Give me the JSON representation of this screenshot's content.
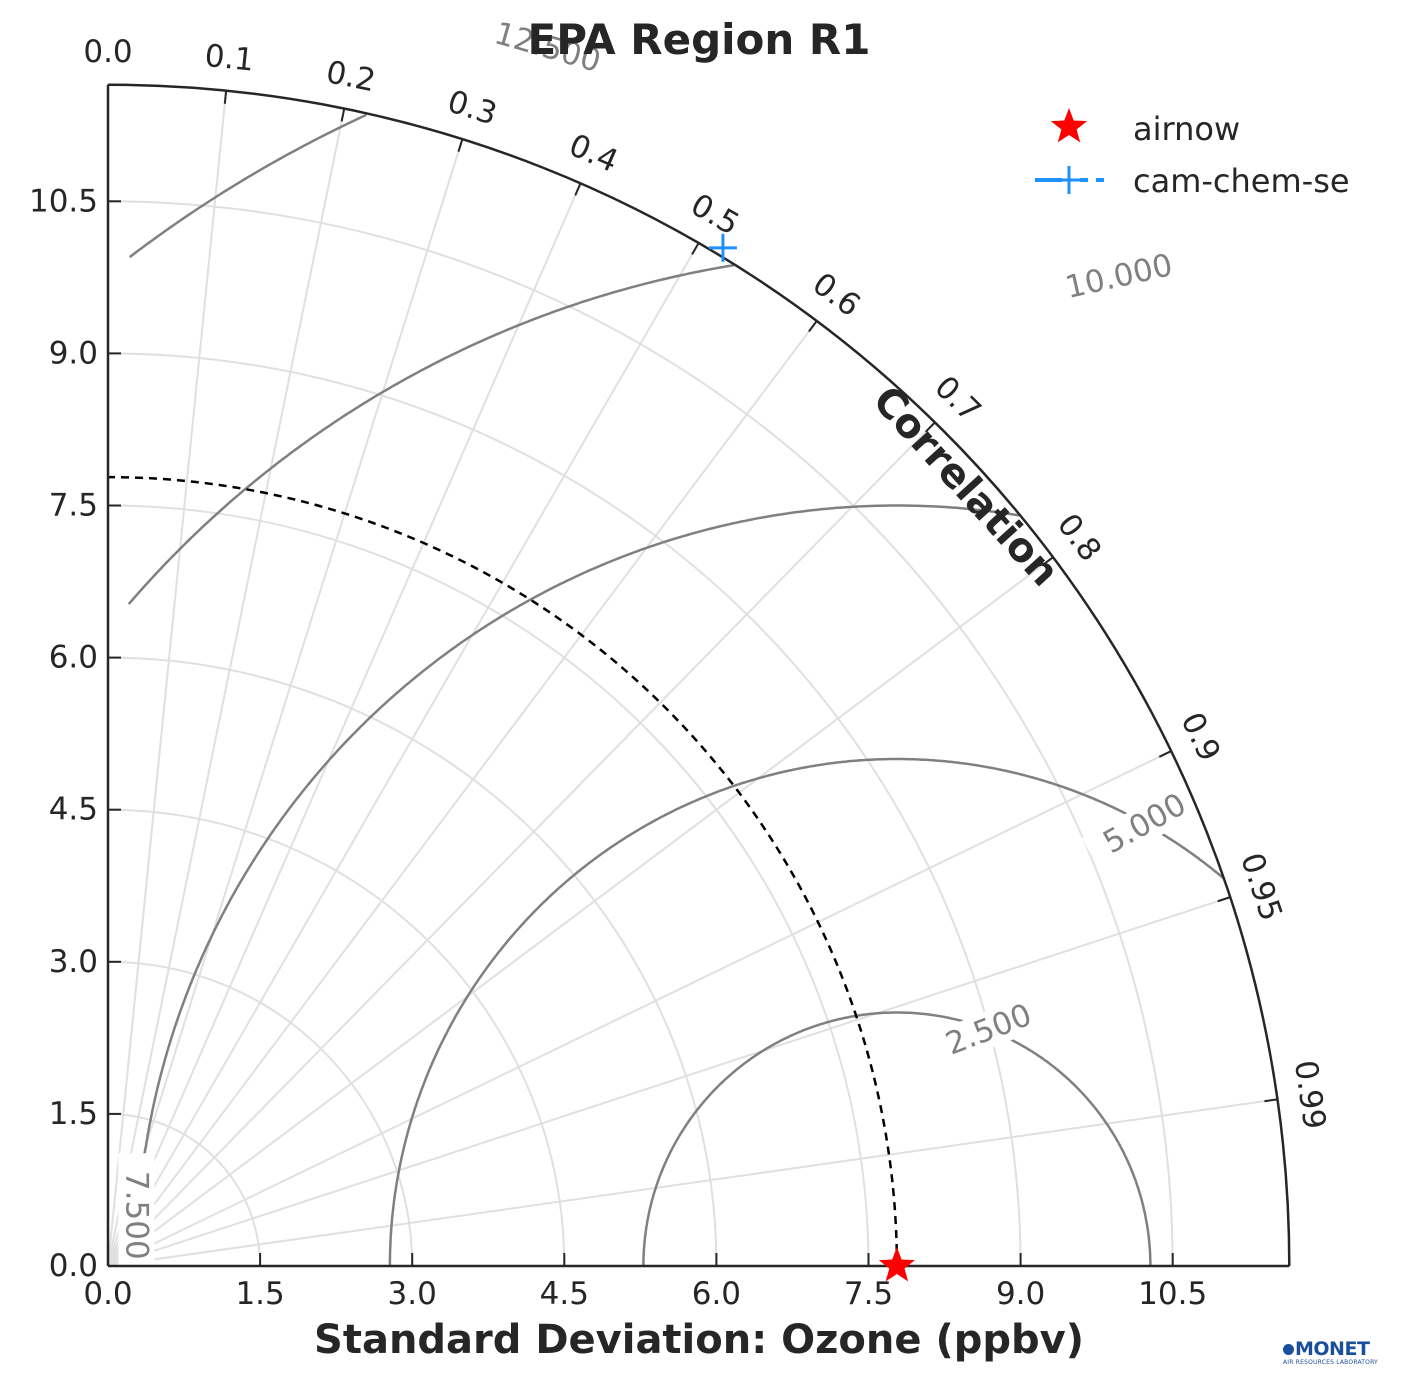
{
  "chart_data": {
    "type": "taylor",
    "title": "EPA Region R1",
    "xlabel": "Standard Deviation: Ozone (ppbv)",
    "corr_label": "Correlation",
    "std_range": [
      0,
      11.65
    ],
    "std_ticks": [
      "0.0",
      "1.5",
      "3.0",
      "4.5",
      "6.0",
      "7.5",
      "9.0",
      "10.5"
    ],
    "corr_ticks": [
      "0.0",
      "0.1",
      "0.2",
      "0.3",
      "0.4",
      "0.5",
      "0.6",
      "0.7",
      "0.8",
      "0.9",
      "0.95",
      "0.99"
    ],
    "ref_std": 7.78,
    "rms_contours": [
      {
        "value": 2.5,
        "label": "2.500"
      },
      {
        "value": 5.0,
        "label": "5.000"
      },
      {
        "value": 7.5,
        "label": "7.500"
      },
      {
        "value": 10.0,
        "label": "10.000"
      },
      {
        "value": 12.5,
        "label": "12.500"
      }
    ],
    "series": [
      {
        "name": "airnow",
        "std": 7.78,
        "corr": 1.0,
        "marker": "star",
        "color": "#ff0000"
      },
      {
        "name": "cam-chem-se",
        "std": 11.73,
        "corr": 0.517,
        "marker": "plus",
        "color": "#1e90ff"
      }
    ],
    "legend_position": "top-right"
  },
  "logo": {
    "text": "MONET",
    "subtext": "AIR RESOURCES LABORATORY",
    "color": "#1a4f9c"
  }
}
